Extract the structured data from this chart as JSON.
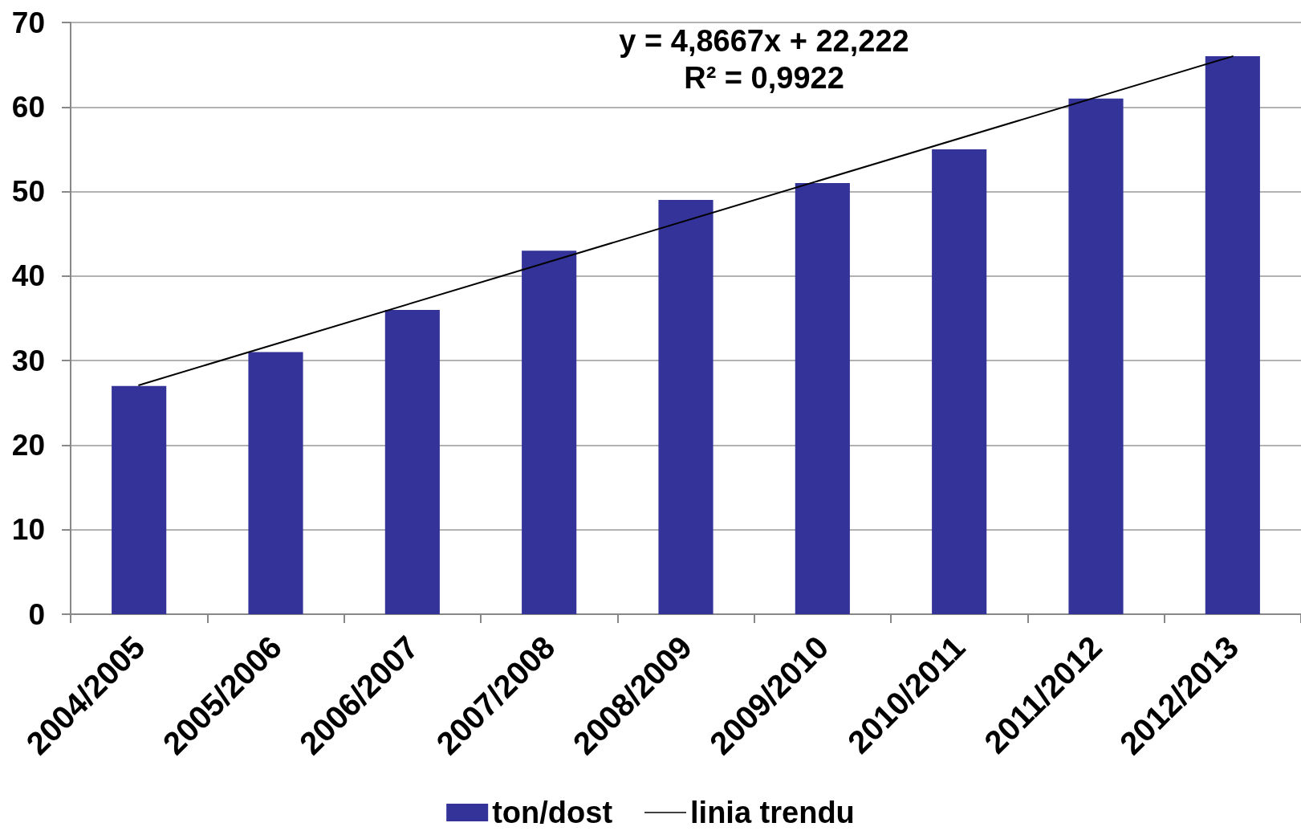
{
  "chart_data": {
    "type": "bar",
    "categories": [
      "2004/2005",
      "2005/2006",
      "2006/2007",
      "2007/2008",
      "2008/2009",
      "2009/2010",
      "2010/2011",
      "2011/2012",
      "2012/2013"
    ],
    "series": [
      {
        "name": "ton/dost",
        "color": "#333399",
        "values": [
          27,
          31,
          36,
          43,
          49,
          51,
          55,
          61,
          66
        ]
      },
      {
        "name": "linia trendu",
        "type": "line",
        "color": "#000000",
        "x": [
          "2004/2005",
          "2012/2013"
        ],
        "values": [
          27.1,
          66.0
        ],
        "marker": "none"
      }
    ],
    "ylim": [
      0,
      70
    ],
    "yticks": [
      0,
      10,
      20,
      30,
      40,
      50,
      60,
      70
    ],
    "grid": "y",
    "legend": "bottom",
    "annotations": [
      "y = 4,8667x + 22,222",
      "R² = 0,9922"
    ]
  }
}
